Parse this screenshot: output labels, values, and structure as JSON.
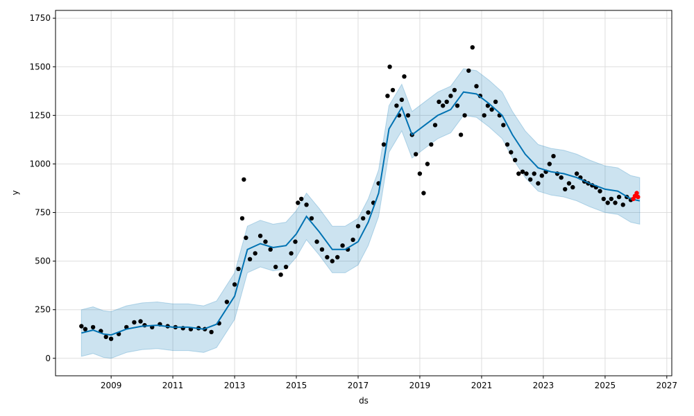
{
  "chart_data": {
    "type": "scatter",
    "title": "",
    "xlabel": "ds",
    "ylabel": "y",
    "xlim": [
      "2007-03-15",
      "2027-03-01"
    ],
    "ylim": [
      -90,
      1790
    ],
    "x_ticks": [
      "2009",
      "2011",
      "2013",
      "2015",
      "2017",
      "2019",
      "2021",
      "2023",
      "2025",
      "2027"
    ],
    "y_ticks": [
      0,
      250,
      500,
      750,
      1000,
      1250,
      1500,
      1750
    ],
    "grid": true,
    "legend": "none",
    "colors": {
      "observed": "#000000",
      "forecast_line": "#0072B2",
      "uncertainty_band": "#0072B2",
      "recent_points": "#ff0000"
    },
    "series": [
      {
        "kind": "observed",
        "x": [
          "2008-01-15",
          "2008-03-01",
          "2008-06-01",
          "2008-09-01",
          "2008-11-01",
          "2009-01-01",
          "2009-04-01",
          "2009-07-01",
          "2009-10-01",
          "2009-12-15",
          "2010-02-01",
          "2010-05-01",
          "2010-08-01",
          "2010-11-01",
          "2011-02-01",
          "2011-05-01",
          "2011-08-01",
          "2011-11-01",
          "2012-01-15",
          "2012-04-01",
          "2012-07-01",
          "2012-10-01",
          "2013-01-01",
          "2013-02-15",
          "2013-04-01",
          "2013-04-20",
          "2013-05-15",
          "2013-07-01",
          "2013-09-01",
          "2013-11-01",
          "2014-01-01",
          "2014-03-01",
          "2014-05-01",
          "2014-07-01",
          "2014-09-01",
          "2014-11-01",
          "2014-12-20",
          "2015-01-20",
          "2015-03-01",
          "2015-05-01",
          "2015-07-01",
          "2015-09-01",
          "2015-11-01",
          "2016-01-01",
          "2016-03-01",
          "2016-05-01",
          "2016-07-01",
          "2016-09-01",
          "2016-11-01",
          "2017-01-01",
          "2017-03-01",
          "2017-05-01",
          "2017-07-01",
          "2017-09-01",
          "2017-11-01",
          "2017-12-15",
          "2018-01-10",
          "2018-02-15",
          "2018-04-01",
          "2018-05-01",
          "2018-06-01",
          "2018-07-01",
          "2018-08-15",
          "2018-10-01",
          "2018-11-15",
          "2019-01-01",
          "2019-02-15",
          "2019-04-01",
          "2019-05-15",
          "2019-07-01",
          "2019-08-15",
          "2019-10-01",
          "2019-11-15",
          "2020-01-01",
          "2020-02-15",
          "2020-03-20",
          "2020-05-01",
          "2020-06-15",
          "2020-08-01",
          "2020-09-15",
          "2020-11-01",
          "2020-12-15",
          "2021-02-01",
          "2021-03-15",
          "2021-05-01",
          "2021-06-15",
          "2021-08-01",
          "2021-09-15",
          "2021-11-01",
          "2021-12-15",
          "2022-02-01",
          "2022-03-15",
          "2022-05-01",
          "2022-06-15",
          "2022-08-01",
          "2022-09-15",
          "2022-11-01",
          "2022-12-15",
          "2023-02-01",
          "2023-03-15",
          "2023-05-01",
          "2023-06-15",
          "2023-08-01",
          "2023-09-15",
          "2023-11-01",
          "2023-12-15",
          "2024-02-01",
          "2024-03-15",
          "2024-05-01",
          "2024-06-15",
          "2024-08-01",
          "2024-09-15",
          "2024-11-01",
          "2024-12-15",
          "2025-02-01",
          "2025-03-15",
          "2025-05-01",
          "2025-06-15",
          "2025-08-01",
          "2025-09-15",
          "2025-11-01"
        ],
        "y": [
          165,
          150,
          160,
          140,
          110,
          100,
          125,
          160,
          185,
          190,
          170,
          160,
          175,
          165,
          160,
          155,
          150,
          155,
          150,
          135,
          180,
          290,
          380,
          460,
          720,
          920,
          620,
          510,
          540,
          630,
          600,
          560,
          470,
          430,
          470,
          540,
          600,
          800,
          820,
          790,
          720,
          600,
          560,
          520,
          500,
          520,
          580,
          560,
          610,
          680,
          720,
          750,
          800,
          900,
          1100,
          1350,
          1500,
          1380,
          1300,
          1250,
          1330,
          1450,
          1250,
          1150,
          1050,
          950,
          850,
          1000,
          1100,
          1200,
          1320,
          1300,
          1320,
          1350,
          1380,
          1300,
          1150,
          1250,
          1480,
          1600,
          1400,
          1350,
          1250,
          1300,
          1280,
          1320,
          1250,
          1200,
          1100,
          1060,
          1020,
          950,
          960,
          950,
          920,
          950,
          900,
          940,
          960,
          1000,
          1040,
          950,
          930,
          870,
          900,
          880,
          950,
          930,
          910,
          900,
          890,
          880,
          860,
          820,
          800,
          820,
          800,
          830,
          790,
          830,
          815
        ]
      },
      {
        "kind": "forecast",
        "x": [
          "2008-01-15",
          "2008-06-01",
          "2008-10-01",
          "2009-01-01",
          "2009-07-01",
          "2010-01-01",
          "2010-07-01",
          "2011-01-01",
          "2011-07-01",
          "2012-01-01",
          "2012-06-01",
          "2013-01-01",
          "2013-06-01",
          "2013-11-01",
          "2014-04-01",
          "2014-09-01",
          "2015-01-01",
          "2015-05-01",
          "2015-10-01",
          "2016-03-01",
          "2016-08-01",
          "2017-01-01",
          "2017-05-01",
          "2017-09-01",
          "2018-01-01",
          "2018-06-01",
          "2018-10-01",
          "2019-03-01",
          "2019-08-01",
          "2020-01-01",
          "2020-06-01",
          "2020-11-01",
          "2021-04-01",
          "2021-09-01",
          "2022-01-01",
          "2022-06-01",
          "2022-11-01",
          "2023-04-01",
          "2023-09-01",
          "2024-02-01",
          "2024-07-01",
          "2025-01-01",
          "2025-06-01",
          "2025-11-01",
          "2026-02-15"
        ],
        "y": [
          130,
          145,
          125,
          120,
          150,
          165,
          170,
          160,
          160,
          150,
          175,
          320,
          560,
          590,
          570,
          580,
          640,
          730,
          650,
          560,
          560,
          600,
          700,
          850,
          1180,
          1290,
          1150,
          1200,
          1250,
          1280,
          1370,
          1360,
          1310,
          1250,
          1150,
          1050,
          980,
          960,
          950,
          930,
          900,
          870,
          860,
          820,
          810
        ],
        "lower": [
          10,
          25,
          5,
          0,
          30,
          45,
          50,
          40,
          40,
          30,
          55,
          200,
          440,
          470,
          450,
          460,
          520,
          610,
          530,
          440,
          440,
          480,
          580,
          730,
          1060,
          1170,
          1030,
          1080,
          1130,
          1160,
          1250,
          1240,
          1190,
          1130,
          1030,
          930,
          860,
          840,
          830,
          810,
          780,
          750,
          740,
          700,
          690
        ],
        "upper": [
          250,
          265,
          245,
          240,
          270,
          285,
          290,
          280,
          280,
          270,
          295,
          440,
          680,
          710,
          690,
          700,
          760,
          850,
          770,
          680,
          680,
          720,
          820,
          970,
          1300,
          1410,
          1270,
          1320,
          1370,
          1400,
          1490,
          1480,
          1430,
          1370,
          1270,
          1170,
          1100,
          1080,
          1070,
          1050,
          1020,
          990,
          980,
          940,
          930
        ]
      },
      {
        "kind": "recent",
        "x": [
          "2025-12-01",
          "2025-12-20",
          "2026-01-10",
          "2026-01-25"
        ],
        "y": [
          820,
          835,
          850,
          830
        ]
      }
    ]
  }
}
